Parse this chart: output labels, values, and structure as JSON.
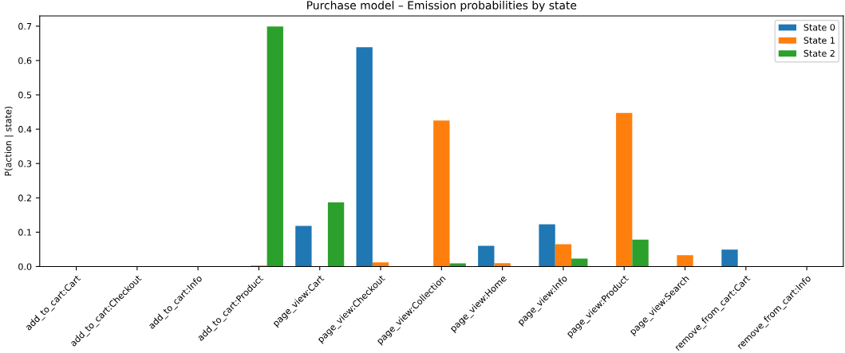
{
  "chart_data": {
    "type": "bar",
    "title": "Purchase model – Emission probabilities by state",
    "ylabel": "P(action | state)",
    "categories": [
      "add_to_cart:Cart",
      "add_to_cart:Checkout",
      "add_to_cart:Info",
      "add_to_cart:Product",
      "page_view:Cart",
      "page_view:Checkout",
      "page_view:Collection",
      "page_view:Home",
      "page_view:Info",
      "page_view:Product",
      "page_view:Search",
      "remove_from_cart:Cart",
      "remove_from_cart:Info"
    ],
    "series": [
      {
        "name": "State 0",
        "color": "#1f77b4",
        "values": [
          0,
          0,
          0,
          0,
          0.118,
          0.639,
          0,
          0.06,
          0.123,
          0,
          0,
          0.049,
          0
        ]
      },
      {
        "name": "State 1",
        "color": "#ff7f0e",
        "values": [
          0,
          0,
          0,
          0.003,
          0,
          0.012,
          0.425,
          0.01,
          0.065,
          0.447,
          0.033,
          0,
          0
        ]
      },
      {
        "name": "State 2",
        "color": "#2ca02c",
        "values": [
          0,
          0,
          0,
          0.699,
          0.187,
          0,
          0.009,
          0,
          0.023,
          0.078,
          0,
          0,
          0
        ]
      }
    ],
    "ylim": [
      0,
      0.73
    ],
    "yticks": [
      {
        "value": 0,
        "label": "0.0"
      },
      0.1,
      0.2,
      0.3,
      0.4,
      0.5,
      0.6,
      0.7
    ],
    "legend": "top right",
    "grid": false
  }
}
